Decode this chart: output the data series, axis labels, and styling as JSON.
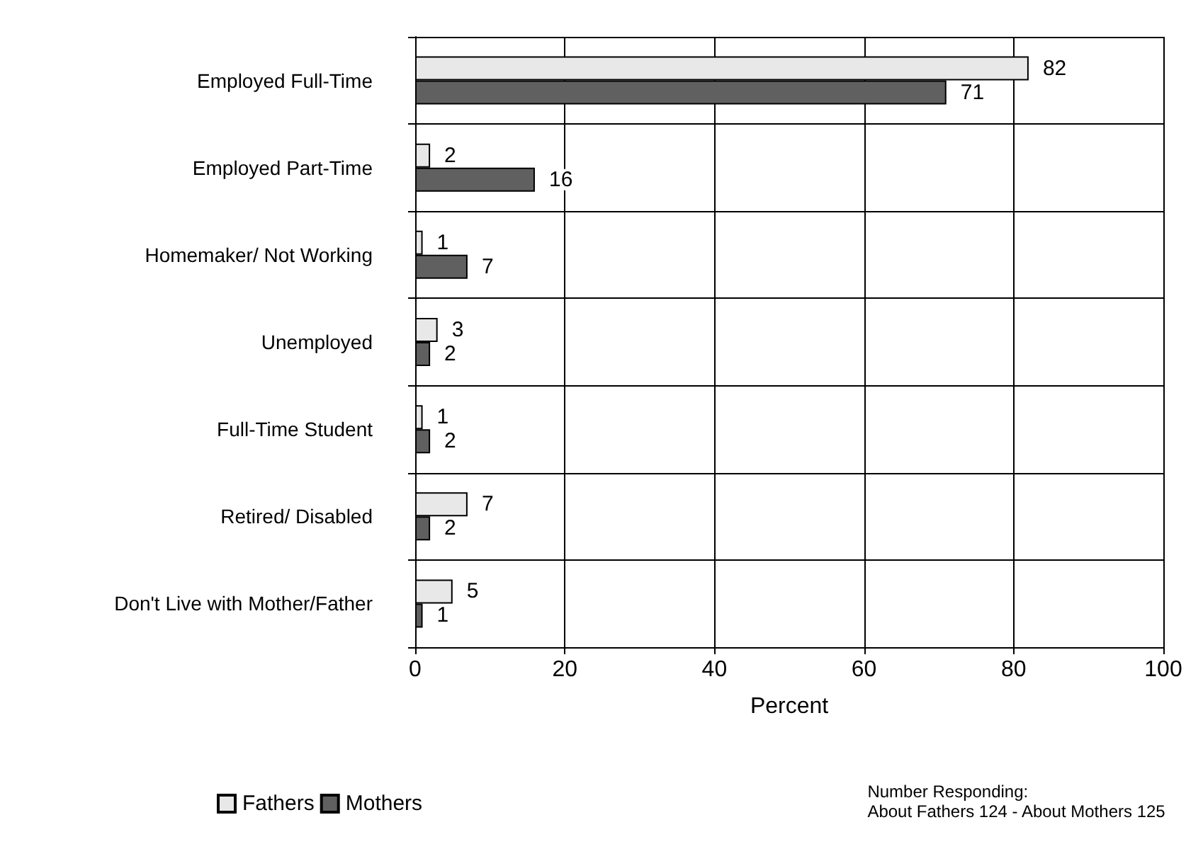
{
  "chart_data": {
    "type": "bar",
    "orientation": "horizontal",
    "categories": [
      "Employed Full-Time",
      "Employed Part-Time",
      "Homemaker/ Not Working",
      "Unemployed",
      "Full-Time Student",
      "Retired/ Disabled",
      "Don't Live with Mother/Father"
    ],
    "series": [
      {
        "name": "Fathers",
        "color": "#e8e8e8",
        "values": [
          82,
          2,
          1,
          3,
          1,
          7,
          5
        ]
      },
      {
        "name": "Mothers",
        "color": "#606060",
        "values": [
          71,
          16,
          7,
          2,
          2,
          2,
          1
        ]
      }
    ],
    "xlim": [
      0,
      100
    ],
    "xticks": [
      0,
      20,
      40,
      60,
      80,
      100
    ],
    "xlabel": "Percent",
    "data_labels": true,
    "grid": true,
    "legend": "bottom left",
    "annotations": [
      "Number Responding:\nAbout Fathers 124 - About Mothers 125"
    ]
  }
}
